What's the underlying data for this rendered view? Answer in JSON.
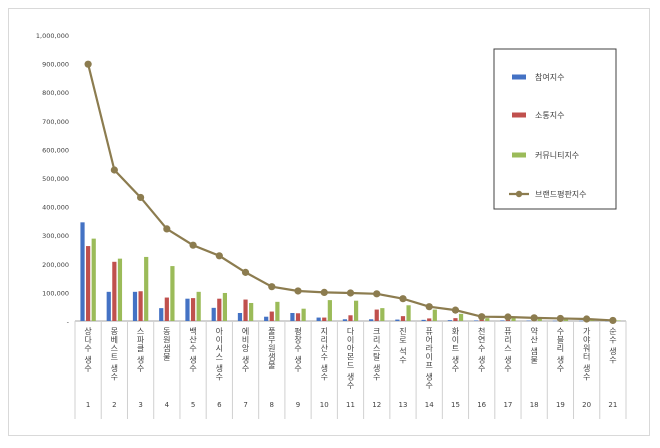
{
  "chart_data": {
    "type": "bar",
    "title": "",
    "xlabel": "",
    "ylabel": "",
    "ylim": [
      0,
      1000000
    ],
    "y_ticks": [
      "-",
      "100,000",
      "200,000",
      "300,000",
      "400,000",
      "500,000",
      "600,000",
      "700,000",
      "800,000",
      "900,000",
      "1,000,000"
    ],
    "categories": [
      "상다수 생수",
      "몽베스트 생수",
      "스파클 생수",
      "동원샘물",
      "백산수 생수",
      "아이시스 생수",
      "에비앙 생수",
      "풀무원샘물",
      "평창수 생수",
      "지리산수 생수",
      "다이아몬드 생수",
      "크리스탈 생수",
      "진로 석수",
      "퓨어라이프 생수",
      "화이트 생수",
      "천연수 생수",
      "퓨리스 생수",
      "약산 샘물",
      "수블리 생수",
      "가야워터 생수",
      "순수 생수"
    ],
    "ranks": [
      "1",
      "2",
      "3",
      "4",
      "5",
      "6",
      "7",
      "8",
      "9",
      "10",
      "11",
      "12",
      "13",
      "14",
      "15",
      "16",
      "17",
      "18",
      "19",
      "20",
      "21"
    ],
    "series": [
      {
        "name": "참여지수",
        "kind": "bar",
        "color": "#4472c4",
        "values": [
          345000,
          102000,
          102000,
          45000,
          78000,
          46000,
          28000,
          15000,
          28000,
          12000,
          6000,
          6000,
          5000,
          4000,
          3000,
          2000,
          2000,
          1500,
          1000,
          1000,
          500
        ]
      },
      {
        "name": "소통지수",
        "kind": "bar",
        "color": "#c0504d",
        "values": [
          262000,
          207000,
          104000,
          82000,
          80000,
          78000,
          75000,
          33000,
          27000,
          12000,
          20000,
          40000,
          17000,
          9000,
          10000,
          6000,
          4000,
          3000,
          2500,
          2000,
          1000
        ]
      },
      {
        "name": "커뮤니티지수",
        "kind": "bar",
        "color": "#9bbb59",
        "values": [
          288000,
          218000,
          224000,
          192000,
          102000,
          98000,
          63000,
          67000,
          43000,
          73000,
          71000,
          45000,
          55000,
          40000,
          25000,
          10000,
          12000,
          8000,
          9000,
          7000,
          2000
        ]
      },
      {
        "name": "브랜드평판지수",
        "kind": "line",
        "color": "#8c7c4f",
        "values": [
          898000,
          528000,
          432000,
          322000,
          265000,
          228000,
          170000,
          120000,
          105000,
          100000,
          98000,
          95000,
          78000,
          50000,
          38000,
          15000,
          14000,
          11000,
          9000,
          7000,
          2000
        ]
      }
    ],
    "legend_position": "right",
    "grid": false
  }
}
